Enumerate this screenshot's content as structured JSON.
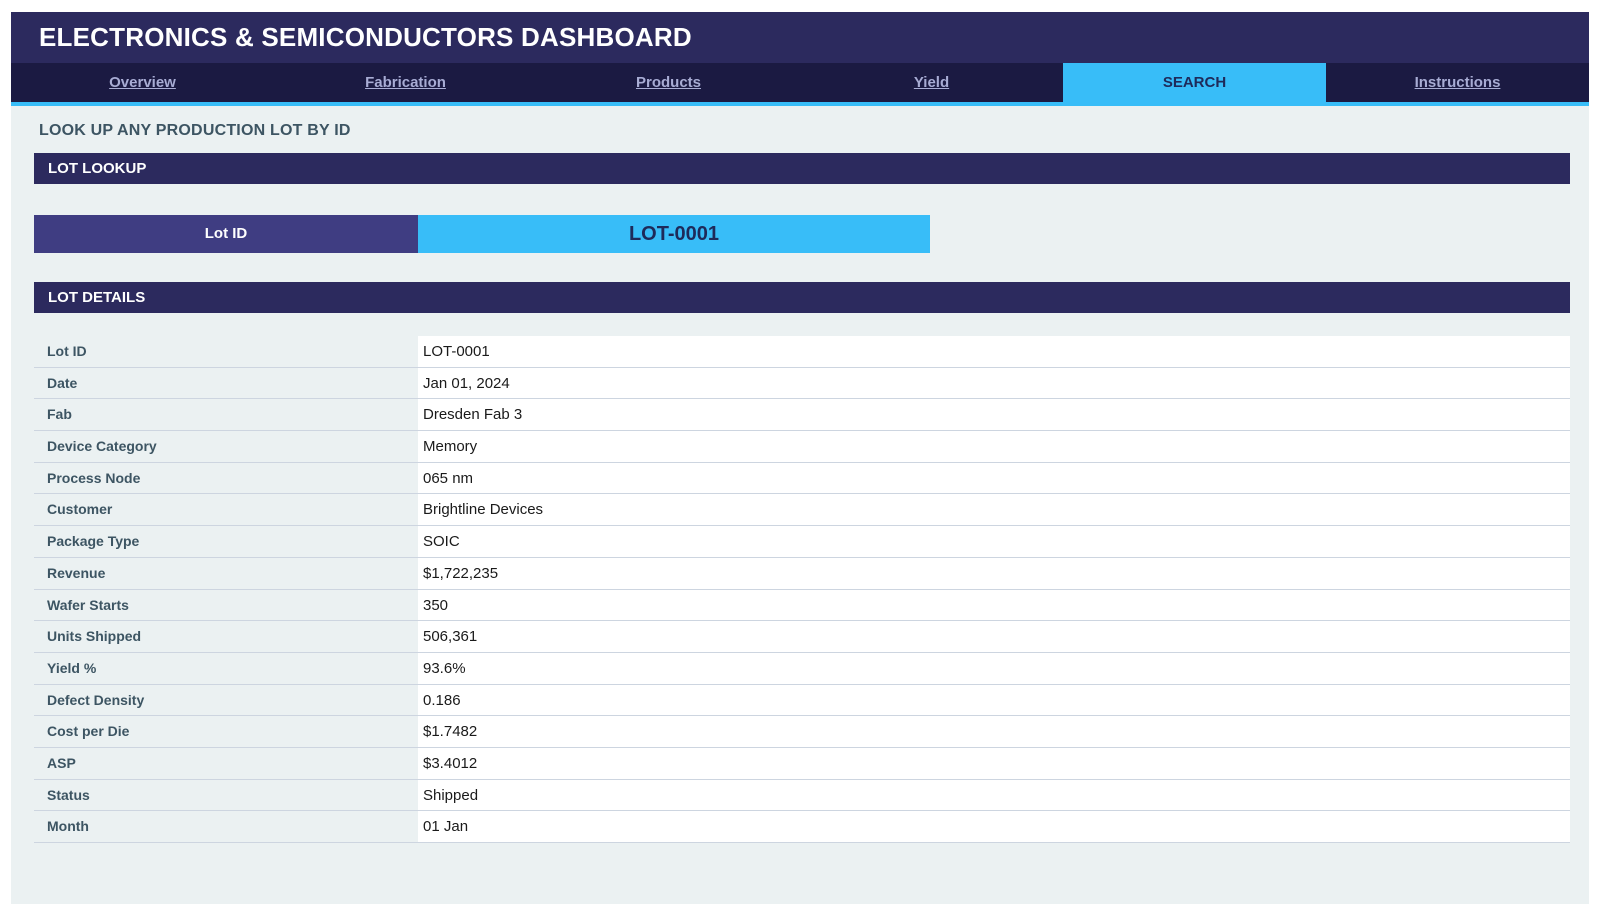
{
  "header": {
    "title": "ELECTRONICS & SEMICONDUCTORS DASHBOARD"
  },
  "nav": {
    "tabs": [
      {
        "label": "Overview"
      },
      {
        "label": "Fabrication"
      },
      {
        "label": "Products"
      },
      {
        "label": "Yield"
      },
      {
        "label": "SEARCH",
        "active": true
      },
      {
        "label": "Instructions"
      }
    ]
  },
  "page": {
    "subtitle": "LOOK UP ANY PRODUCTION LOT BY ID"
  },
  "lookup": {
    "section_title": "LOT LOOKUP",
    "label": "Lot ID",
    "value": "LOT-0001"
  },
  "details": {
    "section_title": "LOT DETAILS",
    "rows": [
      {
        "label": "Lot ID",
        "value": "LOT-0001"
      },
      {
        "label": "Date",
        "value": "Jan 01, 2024"
      },
      {
        "label": "Fab",
        "value": "Dresden Fab 3"
      },
      {
        "label": "Device Category",
        "value": "Memory"
      },
      {
        "label": "Process Node",
        "value": "065 nm"
      },
      {
        "label": "Customer",
        "value": "Brightline Devices"
      },
      {
        "label": "Package Type",
        "value": "SOIC"
      },
      {
        "label": "Revenue",
        "value": "$1,722,235"
      },
      {
        "label": "Wafer Starts",
        "value": "350"
      },
      {
        "label": "Units Shipped",
        "value": "506,361"
      },
      {
        "label": "Yield %",
        "value": "93.6%"
      },
      {
        "label": "Defect Density",
        "value": "0.186"
      },
      {
        "label": "Cost per Die",
        "value": "$1.7482"
      },
      {
        "label": "ASP",
        "value": "$3.4012"
      },
      {
        "label": "Status",
        "value": "Shipped"
      },
      {
        "label": "Month",
        "value": "01 Jan"
      }
    ]
  },
  "colors": {
    "header_bg": "#2c2a5e",
    "nav_bg": "#1b1a42",
    "accent": "#38bdf8",
    "lookup_label_bg": "#3f3d82",
    "panel_bg": "#ebf1f2"
  }
}
